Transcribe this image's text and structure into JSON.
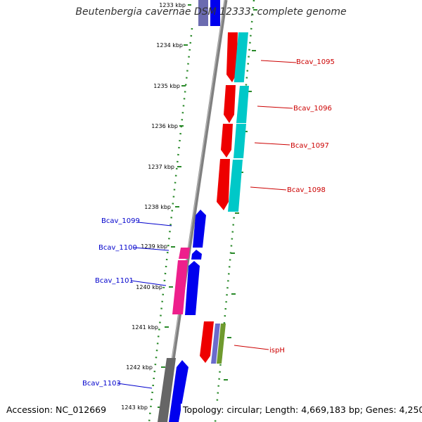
{
  "title": "Beutenbergia cavernae DSM 12333, complete genome",
  "accession": "Accession: NC_012669",
  "topology": "Topology: circular; Length: 4,669,183 bp; Genes: 4,250",
  "colors": {
    "backbone": "#888888",
    "ruler": "#2a8a2a",
    "forward": "#0000ee",
    "reverse": "#ee0000",
    "cyan": "#00c8c8",
    "magenta": "#ee1f8c",
    "olive": "#6f9a2e",
    "slate": "#6b6bcc",
    "gray": "#6a6a6a",
    "label_forward": "#0000cc",
    "label_reverse": "#cc0000"
  },
  "ticks": [
    {
      "label": "1233 kbp",
      "kbp": 1233
    },
    {
      "label": "1234 kbp",
      "kbp": 1234
    },
    {
      "label": "1235 kbp",
      "kbp": 1235
    },
    {
      "label": "1236 kbp",
      "kbp": 1236
    },
    {
      "label": "1237 kbp",
      "kbp": 1237
    },
    {
      "label": "1238 kbp",
      "kbp": 1238
    },
    {
      "label": "1239 kbp",
      "kbp": 1239
    },
    {
      "label": "1240 kbp",
      "kbp": 1240
    },
    {
      "label": "1241 kbp",
      "kbp": 1241
    },
    {
      "label": "1242 kbp",
      "kbp": 1242
    },
    {
      "label": "1243 kbp",
      "kbp": 1243
    }
  ],
  "gene_labels": [
    {
      "name": "Bcav_1095",
      "strand": "reverse"
    },
    {
      "name": "Bcav_1096",
      "strand": "reverse"
    },
    {
      "name": "Bcav_1097",
      "strand": "reverse"
    },
    {
      "name": "Bcav_1098",
      "strand": "reverse"
    },
    {
      "name": "Bcav_1099",
      "strand": "forward"
    },
    {
      "name": "Bcav_1100",
      "strand": "forward"
    },
    {
      "name": "Bcav_1101",
      "strand": "forward"
    },
    {
      "name": "ispH",
      "strand": "reverse"
    },
    {
      "name": "Bcav_1103",
      "strand": "forward"
    }
  ]
}
